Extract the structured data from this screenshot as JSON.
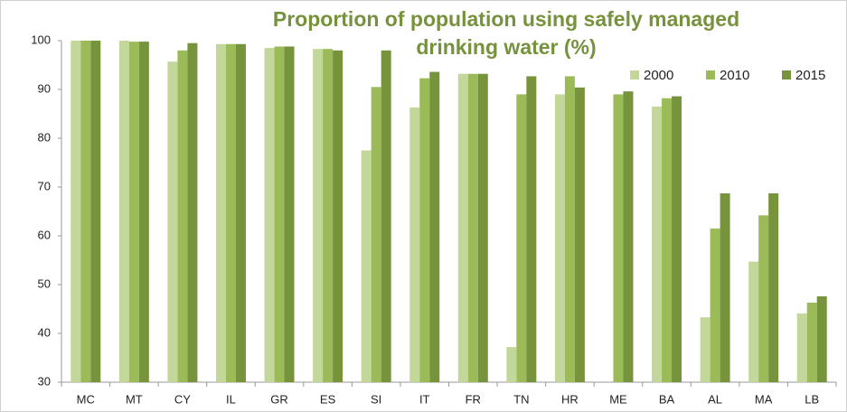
{
  "chart_data": {
    "type": "bar",
    "title": "Proportion of population using safely managed drinking water (%)",
    "categories": [
      "MC",
      "MT",
      "CY",
      "IL",
      "GR",
      "ES",
      "SI",
      "IT",
      "FR",
      "TN",
      "HR",
      "ME",
      "BA",
      "AL",
      "MA",
      "LB"
    ],
    "series": [
      {
        "name": "2000",
        "color": "#c4d79b",
        "values": [
          100,
          100,
          95.7,
          99.3,
          98.5,
          98.3,
          77.5,
          86.3,
          93.2,
          37.2,
          89,
          null,
          86.5,
          43.3,
          54.7,
          44.1
        ]
      },
      {
        "name": "2010",
        "color": "#9bbb59",
        "values": [
          100,
          99.8,
          98,
          99.3,
          98.8,
          98.3,
          90.5,
          92.3,
          93.2,
          89,
          92.7,
          89,
          88.2,
          61.5,
          64.2,
          46.3
        ]
      },
      {
        "name": "2015",
        "color": "#77933c",
        "values": [
          100,
          99.8,
          99.5,
          99.3,
          98.8,
          98,
          98,
          93.6,
          93.2,
          92.7,
          90.4,
          89.6,
          88.6,
          68.7,
          68.7,
          47.6
        ]
      }
    ],
    "ylim": [
      30,
      100
    ],
    "yticks": [
      30,
      40,
      50,
      60,
      70,
      80,
      90,
      100
    ],
    "grid": false,
    "legend": "top-right"
  }
}
